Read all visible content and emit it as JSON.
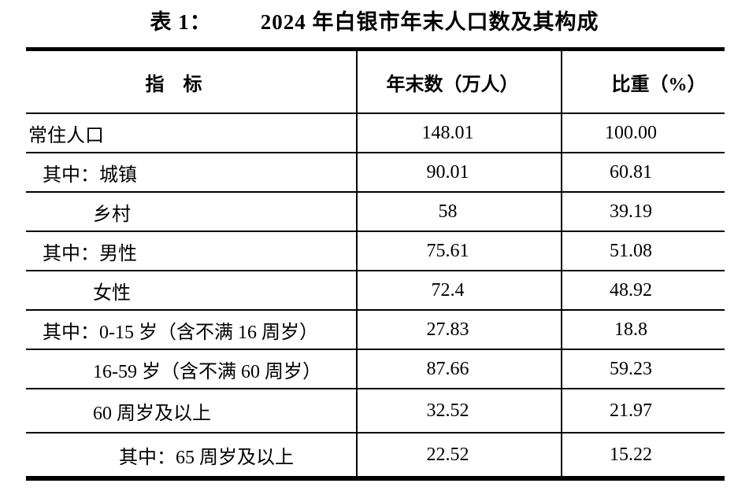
{
  "title": {
    "prefix": "表 1：",
    "text": "2024 年白银市年末人口数及其构成"
  },
  "table": {
    "columns": {
      "indicator": "指　标",
      "value": "年末数（万人）",
      "share": "比重（%）"
    },
    "rows": [
      {
        "indicator": "常住人口",
        "value": "148.01",
        "share": "100.00",
        "indent": 0
      },
      {
        "indicator": "其中：城镇",
        "value": "90.01",
        "share": "60.81",
        "indent": 1
      },
      {
        "indicator": "乡村",
        "value": "58",
        "share": "39.19",
        "indent": 2
      },
      {
        "indicator": "其中：男性",
        "value": "75.61",
        "share": "51.08",
        "indent": 1
      },
      {
        "indicator": "女性",
        "value": "72.4",
        "share": "48.92",
        "indent": 2
      },
      {
        "indicator": "其中：0-15 岁（含不满 16 周岁）",
        "value": "27.83",
        "share": "18.8",
        "indent": 1
      },
      {
        "indicator": "16-59 岁（含不满 60 周岁）",
        "value": "87.66",
        "share": "59.23",
        "indent": 2
      },
      {
        "indicator": "60 周岁及以上",
        "value": "32.52",
        "share": "21.97",
        "indent": 2
      },
      {
        "indicator": "其中：65 周岁及以上",
        "value": "22.52",
        "share": "15.22",
        "indent": 3
      }
    ]
  },
  "colors": {
    "text": "#000000",
    "border": "#000000",
    "background": "#ffffff"
  }
}
